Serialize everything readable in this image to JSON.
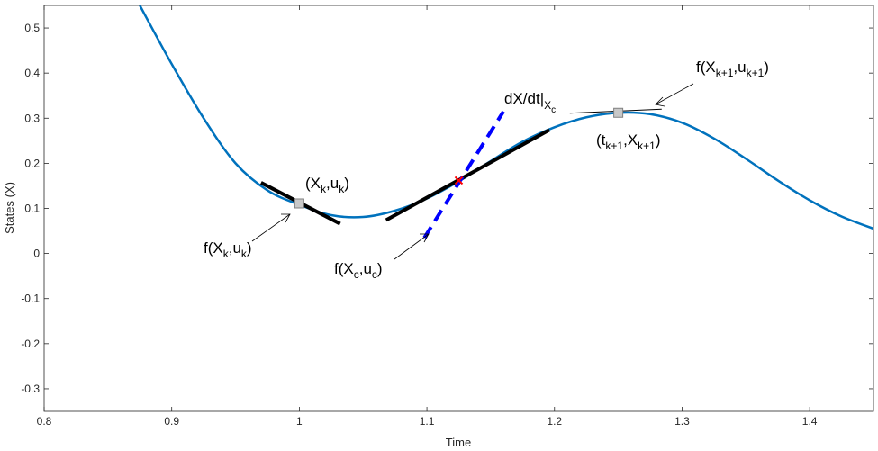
{
  "chart_data": {
    "type": "line",
    "xlabel": "Time",
    "ylabel": "States (X)",
    "xlim": [
      0.8,
      1.45
    ],
    "ylim": [
      -0.35,
      0.55
    ],
    "xticks": [
      0.8,
      0.9,
      1.0,
      1.1,
      1.2,
      1.3,
      1.4
    ],
    "xtick_labels": [
      "0.8",
      "0.9",
      "1",
      "1.1",
      "1.2",
      "1.3",
      "1.4"
    ],
    "yticks": [
      -0.3,
      -0.2,
      -0.1,
      0,
      0.1,
      0.2,
      0.3,
      0.4,
      0.5
    ],
    "ytick_labels": [
      "-0.3",
      "-0.2",
      "-0.1",
      "0",
      "0.1",
      "0.2",
      "0.3",
      "0.4",
      "0.5"
    ],
    "grid": false,
    "colors": {
      "curve": "#0072BD",
      "tangent": "#000000",
      "derivative": "#0000FF",
      "midpoint": "#FF0000",
      "marker_fill": "#C8C8C8",
      "marker_edge": "#808080"
    },
    "series": [
      {
        "x": [
          0.875,
          0.9,
          0.925,
          0.95,
          0.975,
          1.0,
          1.025,
          1.05,
          1.075,
          1.1,
          1.125,
          1.15,
          1.175,
          1.2,
          1.225,
          1.25,
          1.275,
          1.3,
          1.325,
          1.35,
          1.375,
          1.4,
          1.425,
          1.45
        ],
        "y": [
          0.55,
          0.42,
          0.3,
          0.2,
          0.14,
          0.108,
          0.085,
          0.081,
          0.095,
          0.122,
          0.16,
          0.205,
          0.248,
          0.28,
          0.302,
          0.312,
          0.309,
          0.29,
          0.255,
          0.21,
          0.162,
          0.118,
          0.082,
          0.055
        ]
      }
    ],
    "tangent_lines": [
      {
        "x": [
          0.97,
          1.032
        ],
        "y": [
          0.157,
          0.066
        ]
      },
      {
        "x": [
          1.068,
          1.196
        ],
        "y": [
          0.074,
          0.274
        ]
      },
      {
        "x": [
          1.212,
          1.284
        ],
        "y": [
          0.311,
          0.32
        ]
      }
    ],
    "derivative_line": {
      "x": [
        1.098,
        1.16
      ],
      "y": [
        0.035,
        0.315
      ]
    },
    "points": [
      {
        "x": 1.0,
        "y": 0.111,
        "marker": "square"
      },
      {
        "x": 1.25,
        "y": 0.312,
        "marker": "square"
      },
      {
        "x": 1.125,
        "y": 0.162,
        "marker": "x"
      }
    ],
    "annotations": {
      "xk": {
        "text": "(X",
        "sub1": "k",
        "mid": ",u",
        "sub2": "k",
        "end": ")"
      },
      "fxk": {
        "text": "f(X",
        "sub1": "k",
        "mid": ",u",
        "sub2": "k",
        "end": ")"
      },
      "fxc": {
        "text": "f(X",
        "sub1": "c",
        "mid": ",u",
        "sub2": "c",
        "end": ")"
      },
      "dxdt": {
        "text": "dX/dt|",
        "sub1": "X",
        "sub2": "c"
      },
      "fxk1": {
        "text": "f(X",
        "sub1": "k+1",
        "mid": ",u",
        "sub2": "k+1",
        "end": ")"
      },
      "tk1": {
        "text": "(t",
        "sub1": "k+1",
        "mid": ",X",
        "sub2": "k+1",
        "end": ")"
      }
    }
  }
}
